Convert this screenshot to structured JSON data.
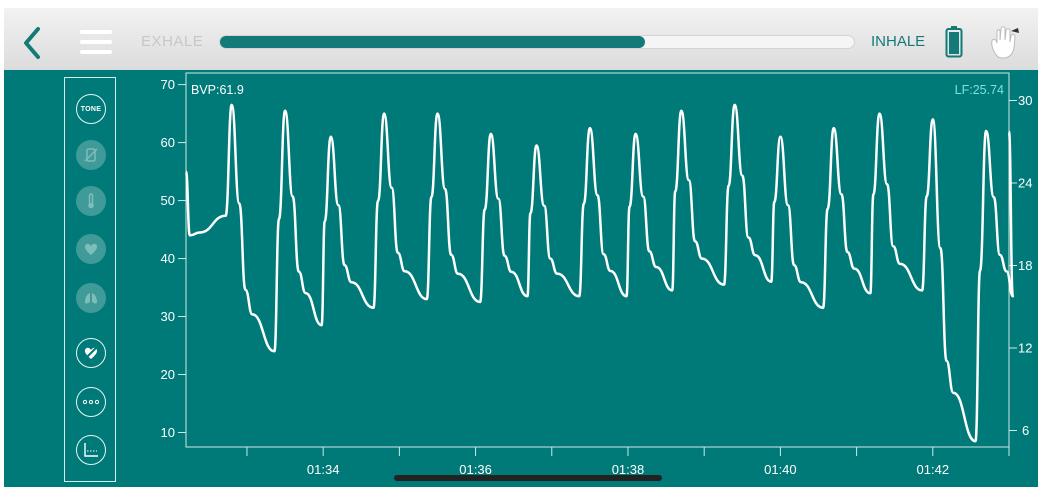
{
  "topbar": {
    "exhale_label": "EXHALE",
    "inhale_label": "INHALE",
    "breath_progress": 0.67
  },
  "sidebar": {
    "tone_label": "TONE",
    "items": [
      {
        "icon": "tone-icon",
        "state": "active"
      },
      {
        "icon": "no-device-icon",
        "state": "dim"
      },
      {
        "icon": "thermometer-icon",
        "state": "dim"
      },
      {
        "icon": "heart-icon",
        "state": "dim"
      },
      {
        "icon": "lungs-icon",
        "state": "dim"
      },
      {
        "icon": "heart-crossed-icon",
        "state": "active"
      },
      {
        "icon": "more-icon",
        "state": "active"
      },
      {
        "icon": "chart-icon",
        "state": "active"
      }
    ]
  },
  "readouts": {
    "bvp": "BVP:61.9",
    "lf": "LF:25.74"
  },
  "chart_data": {
    "type": "line",
    "title": "",
    "x_ticks": [
      "01:34",
      "01:36",
      "01:38",
      "01:40",
      "01:42"
    ],
    "xlim": [
      "01:32.2",
      "01:43.0"
    ],
    "y_left": {
      "ticks": [
        10,
        20,
        30,
        40,
        50,
        60,
        70
      ],
      "lim": [
        7.5,
        72
      ]
    },
    "y_right": {
      "ticks": [
        6,
        12,
        18,
        24,
        30
      ],
      "lim": [
        4.8,
        32
      ]
    },
    "series": [
      {
        "name": "BVP",
        "axis": "left",
        "color": "#ffffff",
        "peaks": [
          {
            "time": "01:32.8",
            "peak": 66.5,
            "trough": 24
          },
          {
            "time": "01:33.5",
            "peak": 65.5,
            "trough": 28.5
          },
          {
            "time": "01:34.1",
            "peak": 61.0,
            "trough": 31.5
          },
          {
            "time": "01:34.8",
            "peak": 65.0,
            "trough": 33
          },
          {
            "time": "01:35.5",
            "peak": 65.0,
            "trough": 32.5
          },
          {
            "time": "01:36.2",
            "peak": 61.5,
            "trough": 33.5
          },
          {
            "time": "01:36.8",
            "peak": 59.5,
            "trough": 33.5
          },
          {
            "time": "01:37.5",
            "peak": 62.5,
            "trough": 33.5
          },
          {
            "time": "01:38.1",
            "peak": 61.5,
            "trough": 34.5
          },
          {
            "time": "01:38.7",
            "peak": 65.5,
            "trough": 35.5
          },
          {
            "time": "01:39.4",
            "peak": 66.5,
            "trough": 36
          },
          {
            "time": "01:40.0",
            "peak": 61.0,
            "trough": 31.5
          },
          {
            "time": "01:40.7",
            "peak": 62.5,
            "trough": 34
          },
          {
            "time": "01:41.3",
            "peak": 65.0,
            "trough": 34.5
          },
          {
            "time": "01:42.0",
            "peak": 64.0,
            "trough": 8.5
          },
          {
            "time": "01:42.7",
            "peak": 62.0,
            "trough": 33.5
          }
        ]
      },
      {
        "name": "LF",
        "axis": "right",
        "color": "#7fe0dc",
        "start": 20.3,
        "end": 25.74
      }
    ]
  }
}
